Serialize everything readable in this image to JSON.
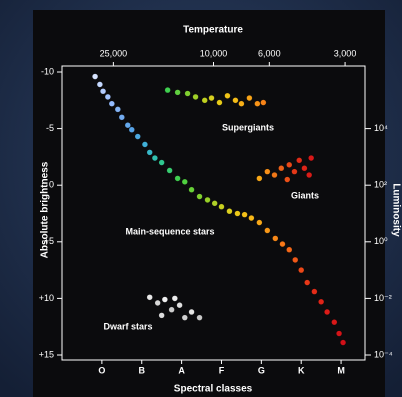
{
  "chart_data": {
    "type": "scatter",
    "x2_label": "Temperature",
    "x_label": "Spectral classes",
    "y_label": "Absolute brightness",
    "y2_label": "Luminosity",
    "xlim": [
      0,
      7.6
    ],
    "xticks": [
      {
        "value": 1,
        "label": "O"
      },
      {
        "value": 2,
        "label": "B"
      },
      {
        "value": 3,
        "label": "A"
      },
      {
        "value": 4,
        "label": "F"
      },
      {
        "value": 5,
        "label": "G"
      },
      {
        "value": 6,
        "label": "K"
      },
      {
        "value": 7,
        "label": "M"
      }
    ],
    "x2lim": [
      40000,
      2500
    ],
    "x2_log": true,
    "x2ticks": [
      {
        "value": 25000,
        "label": "25,000"
      },
      {
        "value": 10000,
        "label": "10,000"
      },
      {
        "value": 6000,
        "label": "6,000"
      },
      {
        "value": 3000,
        "label": "3,000"
      }
    ],
    "ylim": [
      15,
      -10
    ],
    "yticks": [
      -10,
      -5,
      0,
      {
        "value": 5,
        "label": "+5"
      },
      {
        "value": 10,
        "label": "+10"
      },
      {
        "value": 15,
        "label": "+15"
      }
    ],
    "y2lim": [
      0.0001,
      1000000
    ],
    "y2_log": true,
    "y2ticks": [
      {
        "value": 10000,
        "label": "10⁴"
      },
      {
        "value": 100,
        "label": "10²"
      },
      {
        "value": 1,
        "label": "10⁰"
      },
      {
        "value": 0.01,
        "label": "10⁻²"
      },
      {
        "value": 0.0001,
        "label": "10⁻⁴"
      }
    ],
    "series": [
      {
        "name": "Main-sequence stars",
        "x": [
          0.83,
          0.95,
          1.03,
          1.15,
          1.25,
          1.4,
          1.5,
          1.65,
          1.75,
          1.9,
          2.08,
          2.2,
          2.33,
          2.5,
          2.7,
          2.9,
          3.08,
          3.25,
          3.45,
          3.65,
          3.83,
          4.0,
          4.2,
          4.4,
          4.58,
          4.75,
          4.95,
          5.15,
          5.35,
          5.53,
          5.7,
          5.85,
          6.0,
          6.15,
          6.33,
          6.5,
          6.65,
          6.83,
          6.95,
          7.05
        ],
        "values": [
          -9.6,
          -8.9,
          -8.3,
          -7.8,
          -7.2,
          -6.7,
          -6.0,
          -5.3,
          -4.9,
          -4.3,
          -3.6,
          -2.9,
          -2.4,
          -2.0,
          -1.3,
          -0.6,
          -0.3,
          0.4,
          1.0,
          1.3,
          1.6,
          1.9,
          2.3,
          2.5,
          2.6,
          2.9,
          3.3,
          4.0,
          4.7,
          5.2,
          5.7,
          6.6,
          7.5,
          8.6,
          9.4,
          10.3,
          11.2,
          12.1,
          13.1,
          13.9
        ],
        "colors": [
          "#d8e4ff",
          "#c4d8ff",
          "#b4ccff",
          "#a4c4ff",
          "#94bcff",
          "#84b4f4",
          "#74acf0",
          "#64a8ec",
          "#58a4e8",
          "#4ca8e0",
          "#40b0d8",
          "#38b8c8",
          "#30c0b0",
          "#30c890",
          "#38cc70",
          "#40d050",
          "#50d040",
          "#68d038",
          "#80d030",
          "#98d028",
          "#b0d028",
          "#c8d020",
          "#dcd020",
          "#ecc818",
          "#f4c018",
          "#f8b818",
          "#f8a818",
          "#f89818",
          "#f88818",
          "#f87818",
          "#f46818",
          "#f05818",
          "#ec4818",
          "#e83818",
          "#e42c18",
          "#e02418",
          "#dc1c18",
          "#d81818",
          "#d41418",
          "#d01018"
        ]
      },
      {
        "name": "Supergiants",
        "x": [
          2.65,
          2.9,
          3.15,
          3.35,
          3.58,
          3.75,
          3.95,
          4.15,
          4.35,
          4.5,
          4.7,
          4.9,
          5.05
        ],
        "values": [
          -8.4,
          -8.2,
          -8.1,
          -7.8,
          -7.5,
          -7.7,
          -7.3,
          -7.9,
          -7.5,
          -7.2,
          -7.7,
          -7.2,
          -7.3
        ],
        "colors": [
          "#40d050",
          "#60d040",
          "#80d030",
          "#a0d028",
          "#c0d020",
          "#d8d020",
          "#e8cc18",
          "#f0c418",
          "#f4bc18",
          "#f8b018",
          "#f8a418",
          "#f89418",
          "#f88418"
        ]
      },
      {
        "name": "Giants",
        "x": [
          4.95,
          5.15,
          5.33,
          5.5,
          5.7,
          5.83,
          5.95,
          6.08,
          6.2,
          5.65,
          6.25
        ],
        "values": [
          -0.6,
          -1.2,
          -0.9,
          -1.5,
          -1.8,
          -1.2,
          -2.2,
          -1.5,
          -0.9,
          -0.5,
          -2.4
        ],
        "colors": [
          "#f8a818",
          "#f89018",
          "#f07818",
          "#ec6018",
          "#e84818",
          "#e43818",
          "#e02c18",
          "#dc2418",
          "#d81c18",
          "#ec5018",
          "#d81818"
        ]
      },
      {
        "name": "Dwarf stars",
        "x": [
          2.2,
          2.4,
          2.58,
          2.75,
          2.95,
          3.08,
          3.25,
          3.45,
          2.5,
          2.83
        ],
        "values": [
          9.9,
          10.4,
          10.1,
          11.0,
          10.6,
          11.7,
          11.2,
          11.7,
          11.5,
          10.0
        ],
        "colors": [
          "#e8e8e8",
          "#d8d8d8",
          "#f0f0f0",
          "#cccccc",
          "#e0e0e0",
          "#d0d0d0",
          "#e4e4e4",
          "#c8c8c8",
          "#dcdcdc",
          "#ececec"
        ]
      }
    ]
  }
}
